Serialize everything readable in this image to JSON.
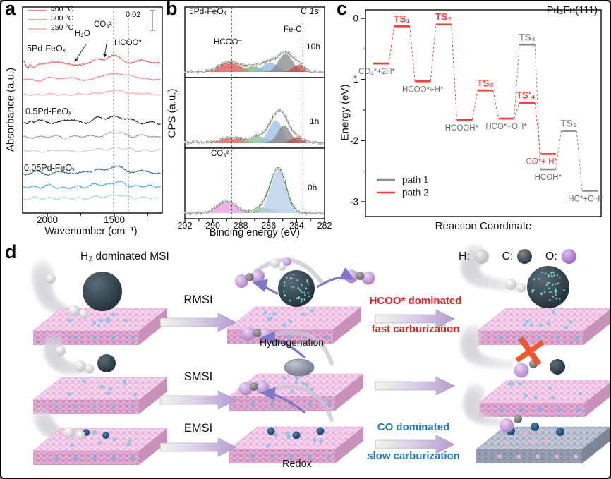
{
  "panels": {
    "a": {
      "label": "a"
    },
    "b": {
      "label": "b"
    },
    "c": {
      "label": "c"
    },
    "d": {
      "label": "d",
      "title": "H₂ dominated MSI",
      "row_labels": [
        "RMSI",
        "SMSI",
        "EMSI"
      ],
      "process_labels": [
        "Hydrogenation",
        "Redox"
      ],
      "outcome_fast": [
        "HCOO* dominated",
        "fast carburization"
      ],
      "outcome_slow": [
        "CO dominated",
        "slow carburization"
      ],
      "outcome_colors": {
        "fast": "#ee1c25",
        "slow": "#1f7ac8"
      },
      "atom_legend": [
        {
          "label": "H:",
          "color": "#b9c0ba"
        },
        {
          "label": "C:",
          "color": "#3a4045"
        },
        {
          "label": "O:",
          "color": "#9d6cc0"
        }
      ]
    }
  },
  "chart_data": [
    {
      "panel": "a",
      "type": "line",
      "xlabel": "Wavenumber (cm⁻¹)",
      "ylabel": "Absorbance (a.u.)",
      "x_range": [
        2184,
        1142
      ],
      "x_ticks": [
        2000,
        1500
      ],
      "x_minor_ticks": [
        1750,
        1250
      ],
      "scale_bar": "0.02",
      "dashed_lines_wavenumber": [
        1505,
        1395
      ],
      "temperature_legend": [
        {
          "label": "400 °C",
          "color": "#e85550"
        },
        {
          "label": "300 °C",
          "color": "#f0837f"
        },
        {
          "label": "250 °C",
          "color": "#f5aba7"
        }
      ],
      "peak_annotations": [
        {
          "label": "H₂O",
          "wavenumber": 1620
        },
        {
          "label": "CO₃²⁻",
          "wavenumber": 1505
        },
        {
          "label": "HCOO*",
          "wavenumber": 1395
        }
      ],
      "groups": [
        {
          "sample": "5Pd-FeOₓ",
          "curves": [
            {
              "temp": "400 °C",
              "color": "#e85550",
              "baseline": 88,
              "amp": 9
            },
            {
              "temp": "300 °C",
              "color": "#f0837f",
              "baseline": 110,
              "amp": 7
            },
            {
              "temp": "250 °C",
              "color": "#f5aba7",
              "baseline": 132,
              "amp": 5
            }
          ]
        },
        {
          "sample": "0.5Pd-FeOₓ",
          "curves": [
            {
              "temp": "400 °C",
              "color": "#1c1c1c",
              "baseline": 170,
              "amp": 7
            },
            {
              "temp": "300 °C",
              "color": "#9a9a9a",
              "baseline": 192,
              "amp": 5
            },
            {
              "temp": "250 °C",
              "color": "#c9c9c9",
              "baseline": 212,
              "amp": 4
            }
          ]
        },
        {
          "sample": "0.05Pd-FeOₓ",
          "curves": [
            {
              "temp": "400 °C",
              "color": "#3c6e96",
              "baseline": 243,
              "amp": 8
            },
            {
              "temp": "300 °C",
              "color": "#45a8dc",
              "baseline": 263,
              "amp": 6
            },
            {
              "temp": "250 °C",
              "color": "#9fd6ea",
              "baseline": 279,
              "amp": 4
            }
          ]
        }
      ]
    },
    {
      "panel": "b",
      "type": "area",
      "sample": "5Pd-FeOₓ",
      "core_level_element": "C",
      "core_level_orbital": "1s",
      "xlabel": "Binding energy (eV)",
      "ylabel": "CPS (a.u.)",
      "x_range": [
        292,
        282
      ],
      "x_ticks": [
        292,
        290,
        288,
        286,
        284,
        282
      ],
      "dashed_lines_eV": [
        288.65,
        283.55
      ],
      "peak_annotations": [
        {
          "label": "HCOO⁻",
          "eV": 288.7,
          "subpanel": "10h"
        },
        {
          "label": "Fe-C",
          "eV": 283.9,
          "subpanel": "10h"
        },
        {
          "label": "CO₃²⁻",
          "eV": 288.9,
          "subpanel": "0h"
        }
      ],
      "subpanels": [
        {
          "time": "10h",
          "components": [
            {
              "assignment": "HCOO⁻",
              "center": 288.8,
              "sigma": 0.75,
              "height": 0.18,
              "color": "#e05552"
            },
            {
              "assignment": "",
              "center": 287.1,
              "sigma": 0.6,
              "height": 0.1,
              "color": "#7cb87c"
            },
            {
              "assignment": "",
              "center": 285.9,
              "sigma": 0.55,
              "height": 0.17,
              "color": "#92b8dc"
            },
            {
              "assignment": "",
              "center": 284.8,
              "sigma": 0.5,
              "height": 0.33,
              "color": "#8a8a8a"
            },
            {
              "assignment": "Fe-C",
              "center": 283.85,
              "sigma": 0.42,
              "height": 0.13,
              "color": "#c24b45"
            }
          ]
        },
        {
          "time": "1h",
          "components": [
            {
              "assignment": "",
              "center": 288.7,
              "sigma": 0.7,
              "height": 0.09,
              "color": "#e05552"
            },
            {
              "assignment": "",
              "center": 286.7,
              "sigma": 0.6,
              "height": 0.11,
              "color": "#8cc08c"
            },
            {
              "assignment": "",
              "center": 285.5,
              "sigma": 0.5,
              "height": 0.4,
              "color": "#9cc0e4"
            },
            {
              "assignment": "",
              "center": 284.9,
              "sigma": 0.45,
              "height": 0.31,
              "color": "#8a8a8a"
            },
            {
              "assignment": "",
              "center": 283.95,
              "sigma": 0.4,
              "height": 0.1,
              "color": "#c24b45"
            }
          ]
        },
        {
          "time": "0h",
          "extra_dashed_eV": 289.05,
          "components": [
            {
              "assignment": "CO₃²⁻",
              "center": 289.0,
              "sigma": 0.65,
              "height": 0.21,
              "color": "#efa0e0"
            },
            {
              "assignment": "",
              "center": 286.35,
              "sigma": 0.65,
              "height": 0.1,
              "color": "#86be86"
            },
            {
              "assignment": "",
              "center": 285.3,
              "sigma": 0.55,
              "height": 0.8,
              "color": "#b7cfe9"
            }
          ]
        }
      ]
    },
    {
      "panel": "c",
      "type": "line",
      "surface": "Pd₃Fe(111)",
      "xlabel": "Reaction Coordinate",
      "ylabel": "Energy (eV)",
      "ylim": [
        -3.3,
        0.3
      ],
      "y_ticks": [
        0,
        -1,
        -2,
        -3
      ],
      "legend": [
        {
          "label": "path 1",
          "color": "#8c8c8c"
        },
        {
          "label": "path 2",
          "color": "#f04438"
        }
      ],
      "states": [
        {
          "name": "CO₂*+2H*",
          "slot": 0,
          "energy": -0.74,
          "bar_color": "#f04438",
          "label_color": "#6e6e6e",
          "label_pos": "below"
        },
        {
          "name": "TS₁",
          "slot": 1,
          "energy": -0.13,
          "bar_color": "#f04438",
          "label_color": "#f04438",
          "label_pos": "above"
        },
        {
          "name": "HCOO*+H*",
          "slot": 2,
          "energy": -1.03,
          "bar_color": "#f04438",
          "label_color": "#6e6e6e",
          "label_pos": "below"
        },
        {
          "name": "TS₂",
          "slot": 3,
          "energy": -0.1,
          "bar_color": "#f04438",
          "label_color": "#f04438",
          "label_pos": "above"
        },
        {
          "name": "HCOOH*",
          "slot": 4,
          "energy": -1.66,
          "bar_color": "#f04438",
          "label_color": "#6e6e6e",
          "label_pos": "below"
        },
        {
          "name": "TS₃",
          "slot": 5,
          "energy": -1.18,
          "bar_color": "#f04438",
          "label_color": "#f04438",
          "label_pos": "above"
        },
        {
          "name": "HCO*+OH*",
          "slot": 6,
          "energy": -1.64,
          "bar_color": "#f04438",
          "label_color": "#6e6e6e",
          "label_pos": "below"
        },
        {
          "name": "TS₄",
          "slot": 7,
          "energy": -0.43,
          "bar_color": "#8c8c8c",
          "label_color": "#8c8c8c",
          "label_pos": "above"
        },
        {
          "name": "TS'₄",
          "slot": 7,
          "energy": -1.38,
          "bar_color": "#f04438",
          "label_color": "#f04438",
          "label_pos": "above"
        },
        {
          "name": "CO*+ H*",
          "slot": 8,
          "energy": -2.22,
          "bar_color": "#f04438",
          "label_color": "#f04438",
          "label_pos": "below"
        },
        {
          "name": "HCOH*",
          "slot": 8,
          "energy": -2.47,
          "bar_color": "#8c8c8c",
          "label_color": "#6e6e6e",
          "label_pos": "below"
        },
        {
          "name": "TS₅",
          "slot": 9,
          "energy": -1.84,
          "bar_color": "#8c8c8c",
          "label_color": "#8c8c8c",
          "label_pos": "above"
        },
        {
          "name": "HC*+OH*",
          "slot": 10,
          "energy": -2.82,
          "bar_color": "#8c8c8c",
          "label_color": "#6e6e6e",
          "label_pos": "below"
        }
      ],
      "connections": {
        "path2": [
          "CO₂*+2H*",
          "TS₁",
          "HCOO*+H*",
          "TS₂",
          "HCOOH*",
          "TS₃",
          "HCO*+OH*",
          "TS'₄",
          "CO*+ H*"
        ],
        "path1": [
          "HCO*+OH*",
          "TS₄",
          "HCOH*",
          "TS₅",
          "HC*+OH*"
        ]
      }
    }
  ]
}
